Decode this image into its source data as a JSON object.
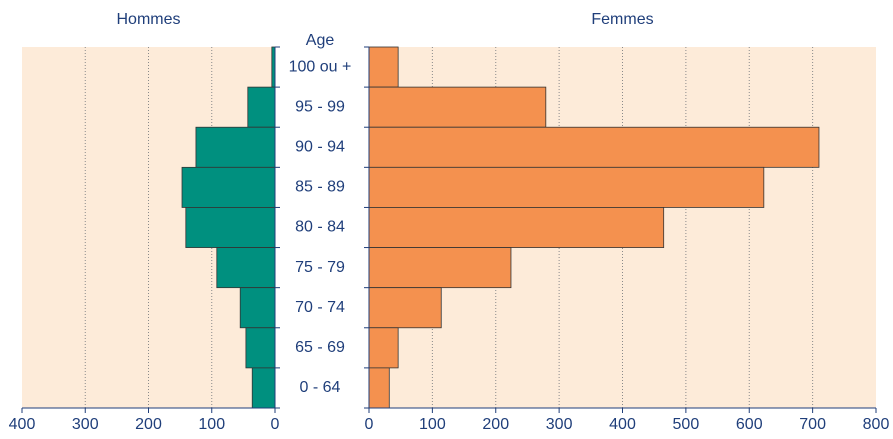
{
  "chart_data": {
    "type": "pyramid",
    "y_label": "Age",
    "categories": [
      "100 ou +",
      "95 - 99",
      "90 - 94",
      "85 - 89",
      "80 - 84",
      "75 - 79",
      "70 - 74",
      "65 - 69",
      "0 - 64"
    ],
    "grid": true,
    "series": [
      {
        "name": "Hommes",
        "color": "#00907f",
        "values": [
          5,
          43,
          125,
          147,
          141,
          92,
          55,
          46,
          36
        ],
        "xlim": [
          0,
          400
        ],
        "xticks": [
          0,
          100,
          200,
          300,
          400
        ]
      },
      {
        "name": "Femmes",
        "color": "#f4914f",
        "values": [
          46,
          279,
          710,
          623,
          465,
          224,
          114,
          46,
          32
        ],
        "xlim": [
          0,
          800
        ],
        "xticks": [
          0,
          100,
          200,
          300,
          400,
          500,
          600,
          700,
          800
        ]
      }
    ]
  }
}
